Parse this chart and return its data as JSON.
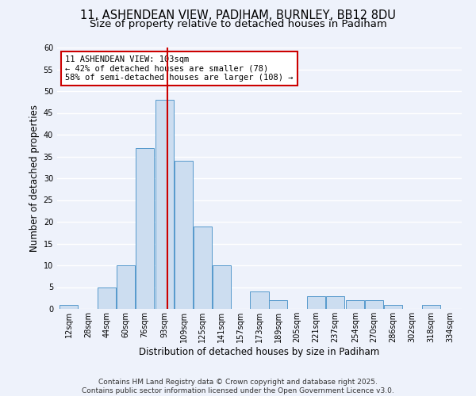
{
  "title_line1": "11, ASHENDEAN VIEW, PADIHAM, BURNLEY, BB12 8DU",
  "title_line2": "Size of property relative to detached houses in Padiham",
  "xlabel": "Distribution of detached houses by size in Padiham",
  "ylabel": "Number of detached properties",
  "bin_labels": [
    "12sqm",
    "28sqm",
    "44sqm",
    "60sqm",
    "76sqm",
    "93sqm",
    "109sqm",
    "125sqm",
    "141sqm",
    "157sqm",
    "173sqm",
    "189sqm",
    "205sqm",
    "221sqm",
    "237sqm",
    "254sqm",
    "270sqm",
    "286sqm",
    "302sqm",
    "318sqm",
    "334sqm"
  ],
  "bin_left_edges": [
    12,
    28,
    44,
    60,
    76,
    93,
    109,
    125,
    141,
    157,
    173,
    189,
    205,
    221,
    237,
    254,
    270,
    286,
    302,
    318,
    334
  ],
  "bar_heights": [
    1,
    0,
    5,
    10,
    37,
    48,
    34,
    19,
    10,
    0,
    4,
    2,
    0,
    3,
    3,
    2,
    2,
    1,
    0,
    1,
    0
  ],
  "bar_color": "#ccddf0",
  "bar_edge_color": "#5599cc",
  "vline_x": 103,
  "vline_color": "#cc0000",
  "annotation_line1": "11 ASHENDEAN VIEW: 103sqm",
  "annotation_line2": "← 42% of detached houses are smaller (78)",
  "annotation_line3": "58% of semi-detached houses are larger (108) →",
  "box_edge_color": "#cc0000",
  "ylim_max": 60,
  "yticks": [
    0,
    5,
    10,
    15,
    20,
    25,
    30,
    35,
    40,
    45,
    50,
    55,
    60
  ],
  "footer_line1": "Contains HM Land Registry data © Crown copyright and database right 2025.",
  "footer_line2": "Contains public sector information licensed under the Open Government Licence v3.0.",
  "bg_color": "#eef2fb",
  "grid_color": "#ffffff",
  "title_fontsize": 10.5,
  "subtitle_fontsize": 9.5,
  "label_fontsize": 8.5,
  "tick_fontsize": 7,
  "annotation_fontsize": 7.5,
  "footer_fontsize": 6.5
}
